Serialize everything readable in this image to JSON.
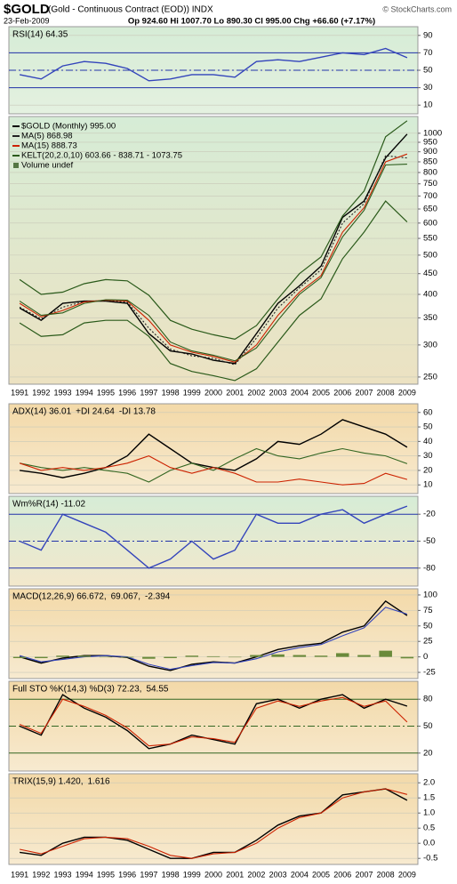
{
  "header": {
    "title": "$GOLD",
    "subtitle": "(Gold - Continuous Contract (EOD)) INDX",
    "date": "23-Feb-2009",
    "quote": "Op 924.60  Hi 1007.70  Lo 890.30  Cl 995.00  Chg +66.60 (+7.17%)",
    "credit": "© StockCharts.com"
  },
  "chart_data": [
    {
      "type": "line",
      "background": [
        "#d6ecd6",
        "#e4f1e0"
      ],
      "ylim": [
        0,
        100
      ],
      "yticks": [
        90,
        70,
        50,
        30,
        10
      ],
      "grid": true,
      "reference_lines": [
        {
          "value": 70,
          "style": "solid",
          "color": "#2233aa"
        },
        {
          "value": 30,
          "style": "solid",
          "color": "#2233aa"
        },
        {
          "value": 50,
          "style": "dashdot",
          "color": "#2233aa"
        }
      ],
      "series": [
        {
          "name": "RSI(14) 64.35",
          "color": "#3344bb",
          "values": [
            45,
            40,
            55,
            60,
            58,
            52,
            38,
            40,
            45,
            45,
            42,
            60,
            62,
            60,
            65,
            70,
            68,
            75,
            64.35
          ]
        }
      ]
    },
    {
      "type": "line",
      "log": true,
      "legend_layout": "column",
      "background": [
        "#d6ecd6",
        "#ece2c2"
      ],
      "ylim": [
        240,
        1100
      ],
      "yticks": [
        1000,
        950,
        900,
        850,
        800,
        750,
        700,
        650,
        600,
        550,
        500,
        450,
        400,
        350,
        300,
        250
      ],
      "grid": true,
      "categories": [
        "1991",
        "1992",
        "1993",
        "1994",
        "1995",
        "1996",
        "1997",
        "1998",
        "1999",
        "2000",
        "2001",
        "2002",
        "2003",
        "2004",
        "2005",
        "2006",
        "2007",
        "2008",
        "2009"
      ],
      "annotations": [
        "Volume undef"
      ],
      "series": [
        {
          "name": "$GOLD (Monthly) 995.00",
          "color": "#000000",
          "values": [
            370,
            345,
            380,
            385,
            385,
            380,
            320,
            290,
            285,
            275,
            270,
            320,
            380,
            420,
            470,
            620,
            680,
            870,
            995
          ]
        },
        {
          "name": "MA(5) 868.98",
          "color": "#222222",
          "values": [
            372,
            348,
            372,
            384,
            386,
            383,
            330,
            293,
            282,
            278,
            268,
            312,
            370,
            415,
            460,
            600,
            670,
            880,
            868.98
          ]
        },
        {
          "name": "MA(15) 888.73",
          "color": "#cc2200",
          "values": [
            380,
            352,
            365,
            383,
            387,
            385,
            345,
            300,
            288,
            281,
            272,
            300,
            355,
            405,
            445,
            570,
            655,
            850,
            888.73
          ]
        },
        {
          "name": "KELT(20,2.0,10) 603.66 - 838.71 - 1073.75",
          "color": "#2a5a1a",
          "values": [
            385,
            355,
            360,
            380,
            388,
            387,
            355,
            305,
            290,
            283,
            274,
            295,
            345,
            400,
            440,
            555,
            645,
            835,
            838.71
          ],
          "lower": [
            340,
            315,
            318,
            340,
            345,
            345,
            315,
            270,
            258,
            252,
            245,
            262,
            305,
            355,
            390,
            490,
            570,
            680,
            603.66
          ],
          "upper": [
            435,
            400,
            405,
            425,
            435,
            432,
            398,
            345,
            328,
            318,
            310,
            335,
            390,
            450,
            495,
            625,
            720,
            980,
            1073.75
          ]
        }
      ]
    },
    {
      "type": "line",
      "background": [
        "#f3d9a8",
        "#f7ead0"
      ],
      "ylim": [
        4,
        66
      ],
      "yticks": [
        60,
        50,
        40,
        30,
        20,
        10
      ],
      "grid": true,
      "series": [
        {
          "name": "ADX(14) 36.01",
          "color": "#000000",
          "values": [
            20,
            18,
            15,
            18,
            22,
            30,
            45,
            35,
            25,
            22,
            20,
            28,
            40,
            38,
            45,
            55,
            50,
            45,
            36.01
          ]
        },
        {
          "name": "+DI 24.64",
          "color": "#336622",
          "values": [
            25,
            22,
            20,
            22,
            20,
            18,
            12,
            20,
            25,
            20,
            28,
            35,
            30,
            28,
            32,
            35,
            32,
            30,
            24.64
          ]
        },
        {
          "name": "-DI 13.78",
          "color": "#cc2200",
          "values": [
            25,
            20,
            22,
            20,
            22,
            25,
            30,
            22,
            18,
            22,
            18,
            12,
            12,
            14,
            12,
            10,
            11,
            18,
            13.78
          ]
        }
      ]
    },
    {
      "type": "line",
      "background": [
        "#d6ecd6",
        "#f3e8cc"
      ],
      "ylim": [
        -100,
        0
      ],
      "yticks": [
        -20,
        -50,
        -80
      ],
      "grid": false,
      "reference_lines": [
        {
          "value": -20,
          "style": "solid",
          "color": "#2233aa"
        },
        {
          "value": -80,
          "style": "solid",
          "color": "#2233aa"
        },
        {
          "value": -50,
          "style": "dashdot",
          "color": "#2233aa"
        }
      ],
      "series": [
        {
          "name": "Wm%R(14) -11.02",
          "color": "#3344bb",
          "values": [
            -50,
            -60,
            -20,
            -30,
            -40,
            -60,
            -80,
            -70,
            -50,
            -70,
            -60,
            -20,
            -30,
            -30,
            -20,
            -15,
            -30,
            -20,
            -11.02
          ]
        }
      ]
    },
    {
      "type": "line",
      "background": [
        "#f3d9a8",
        "#f7ead0"
      ],
      "ylim": [
        -35,
        110
      ],
      "yticks": [
        100,
        75,
        50,
        25,
        0,
        -25
      ],
      "grid": true,
      "series": [
        {
          "name": "MACD(12,26,9) 66.672,",
          "color": "#000000",
          "values": [
            0,
            -10,
            -2,
            2,
            2,
            -1,
            -15,
            -22,
            -12,
            -8,
            -10,
            0,
            12,
            18,
            22,
            40,
            50,
            90,
            66.672
          ]
        },
        {
          "name": "69.067,",
          "color": "#3344bb",
          "values": [
            2,
            -8,
            -4,
            0,
            2,
            0,
            -12,
            -20,
            -14,
            -9,
            -10,
            -3,
            8,
            15,
            20,
            34,
            47,
            80,
            69.067
          ]
        },
        {
          "name": "-2.394",
          "type": "bar",
          "color": "#6a8a3a",
          "values": [
            -2,
            -2,
            2,
            2,
            0,
            -1,
            -3,
            -2,
            2,
            1,
            0,
            3,
            4,
            3,
            2,
            6,
            3,
            10,
            -2.394
          ]
        }
      ]
    },
    {
      "type": "line",
      "background": [
        "#f3d9a8",
        "#f7ead0"
      ],
      "ylim": [
        0,
        100
      ],
      "yticks": [
        80,
        50,
        20
      ],
      "grid": false,
      "reference_lines": [
        {
          "value": 80,
          "style": "solid",
          "color": "#336622"
        },
        {
          "value": 20,
          "style": "solid",
          "color": "#336622"
        },
        {
          "value": 50,
          "style": "dashdot",
          "color": "#336622"
        }
      ],
      "series": [
        {
          "name": "Full STO %K(14,3) %D(3) 72.23,",
          "color": "#000000",
          "values": [
            50,
            40,
            85,
            70,
            60,
            45,
            25,
            30,
            40,
            35,
            30,
            75,
            80,
            70,
            80,
            85,
            70,
            80,
            72.23
          ]
        },
        {
          "name": "54.55",
          "color": "#cc2200",
          "values": [
            52,
            42,
            80,
            72,
            62,
            48,
            28,
            30,
            38,
            36,
            32,
            70,
            78,
            72,
            78,
            82,
            72,
            78,
            54.55
          ]
        }
      ]
    },
    {
      "type": "line",
      "background": [
        "#f3d9a8",
        "#f7ead0"
      ],
      "ylim": [
        -0.7,
        2.3
      ],
      "yticks": [
        {
          "value": 2,
          "label": "2.0"
        },
        1.5,
        {
          "value": 1,
          "label": "1.0"
        },
        0.5,
        {
          "value": 0,
          "label": "0.0"
        },
        -0.5
      ],
      "grid": true,
      "categories": [
        "1991",
        "1992",
        "1993",
        "1994",
        "1995",
        "1996",
        "1997",
        "1998",
        "1999",
        "2000",
        "2001",
        "2002",
        "2003",
        "2004",
        "2005",
        "2006",
        "2007",
        "2008",
        "2009"
      ],
      "series": [
        {
          "name": "TRIX(15,9) 1.420,",
          "color": "#000000",
          "values": [
            -0.3,
            -0.4,
            0,
            0.2,
            0.2,
            0.1,
            -0.2,
            -0.5,
            -0.5,
            -0.3,
            -0.3,
            0.1,
            0.6,
            0.9,
            1.0,
            1.6,
            1.7,
            1.8,
            1.42
          ]
        },
        {
          "name": "1.616",
          "color": "#cc2200",
          "values": [
            -0.2,
            -0.35,
            -0.1,
            0.15,
            0.2,
            0.15,
            -0.1,
            -0.4,
            -0.5,
            -0.35,
            -0.3,
            0,
            0.5,
            0.85,
            1.0,
            1.5,
            1.7,
            1.8,
            1.616
          ]
        }
      ]
    }
  ]
}
